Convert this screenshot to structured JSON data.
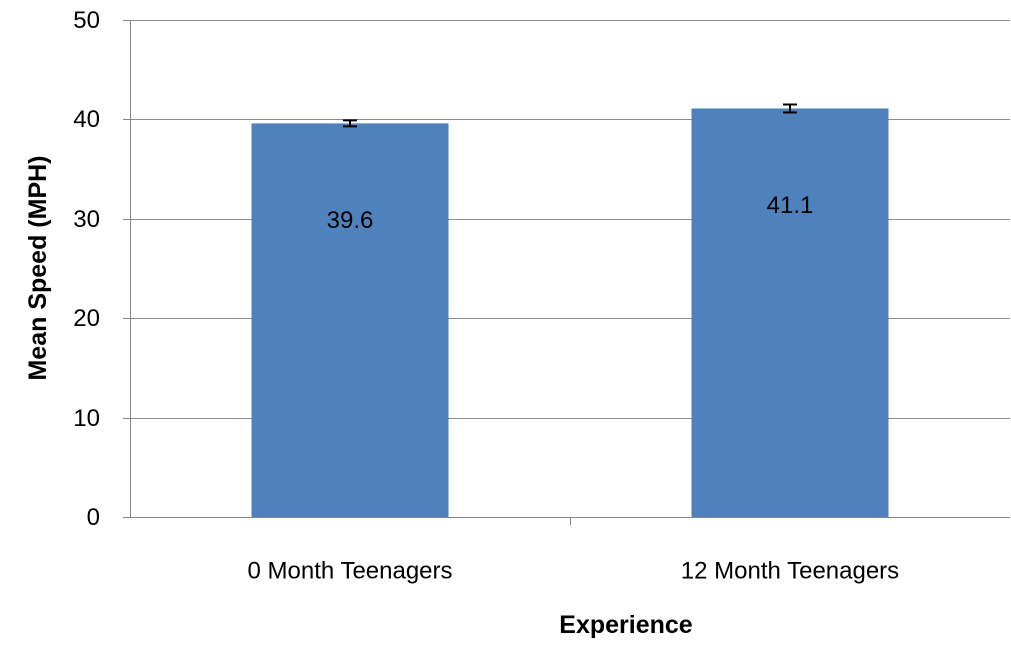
{
  "chart_data": {
    "type": "bar",
    "title": "",
    "xlabel": "Experience",
    "ylabel": "Mean Speed (MPH)",
    "categories": [
      "0 Month Teenagers",
      "12 Month Teenagers"
    ],
    "values": [
      39.6,
      41.1
    ],
    "data_labels": [
      "39.6",
      "41.1"
    ],
    "error": [
      0.3,
      0.4
    ],
    "ylim": [
      0,
      50
    ],
    "yticks": [
      0,
      10,
      20,
      30,
      40,
      50
    ],
    "ytick_labels": [
      "0",
      "10",
      "20",
      "30",
      "40",
      "50"
    ],
    "grid": true,
    "legend": "none",
    "bar_color": "#4F81BD",
    "grid_color": "#8C8C8C",
    "axis_color": "#868686",
    "error_bar_color": "#000000",
    "text_color": "#000000"
  }
}
